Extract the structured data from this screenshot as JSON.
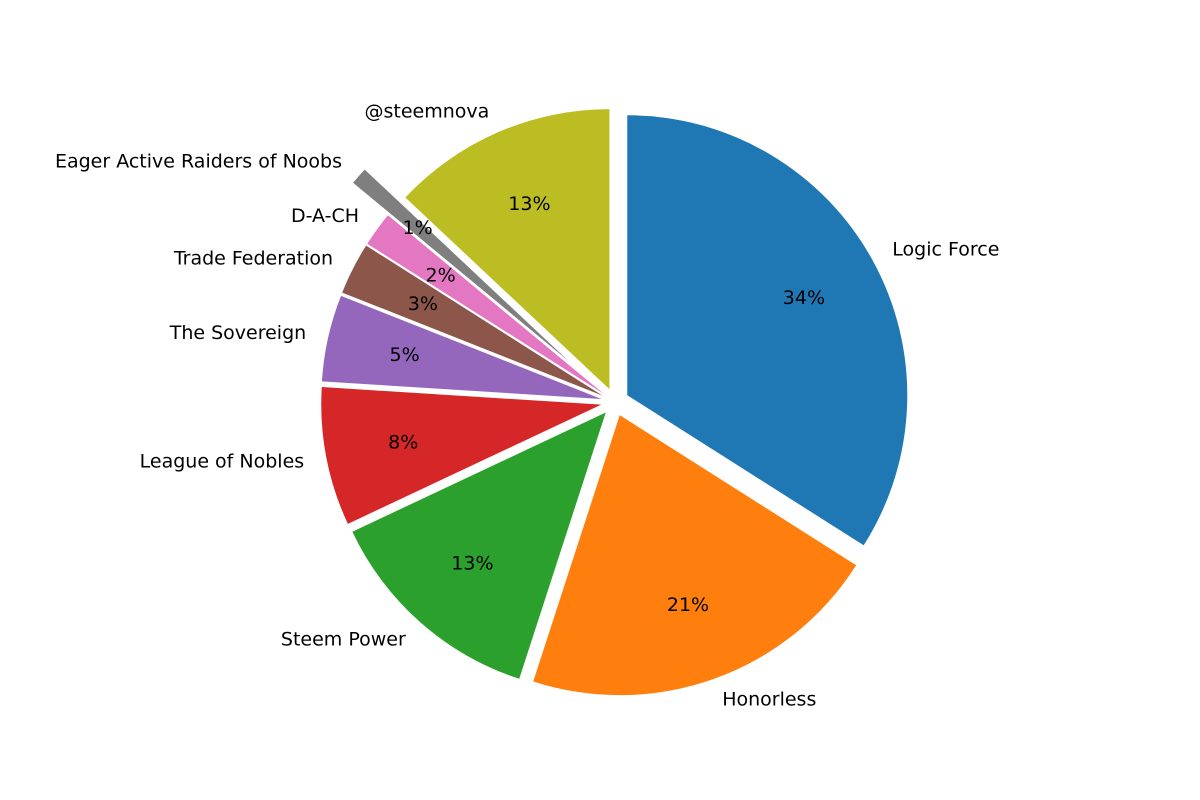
{
  "chart_data": {
    "type": "pie",
    "title": "",
    "labels": [
      "Logic Force",
      "Honorless",
      "Steem Power",
      "League of Nobles",
      "The Sovereign",
      "Trade Federation",
      "D-A-CH",
      "Eager Active Raiders of Noobs",
      "@steemnova"
    ],
    "values": [
      34,
      21,
      13,
      8,
      5,
      3,
      2,
      1,
      13
    ],
    "pct_labels": [
      "34%",
      "21%",
      "13%",
      "8%",
      "5%",
      "3%",
      "2%",
      "1%",
      "13%"
    ],
    "colors": [
      "#1f77b4",
      "#ff7f0e",
      "#2ca02c",
      "#d62728",
      "#9467bd",
      "#8c564b",
      "#e377c2",
      "#7f7f7f",
      "#bcbd22"
    ],
    "explode": [
      0.05,
      0.05,
      0.05,
      0.05,
      0.05,
      0.05,
      0.05,
      0.22,
      0.05
    ],
    "start_angle_deg": 90,
    "clockwise": true,
    "label_color": "#000000",
    "background": "#ffffff",
    "legend": "none"
  }
}
